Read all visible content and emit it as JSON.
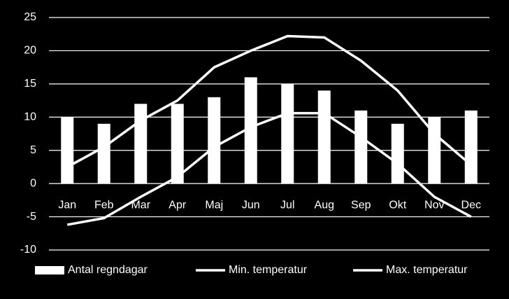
{
  "chart_data": {
    "type": "bar_line",
    "categories": [
      "Jan",
      "Feb",
      "Mar",
      "Apr",
      "Maj",
      "Jun",
      "Jul",
      "Aug",
      "Sep",
      "Okt",
      "Nov",
      "Dec"
    ],
    "series": [
      {
        "name": "Antal regndagar",
        "type": "bar",
        "color": "#ffffff",
        "values": [
          10,
          9,
          12,
          12,
          13,
          16,
          15,
          14,
          11,
          9,
          10,
          11
        ]
      },
      {
        "name": "Min. temperatur",
        "type": "line",
        "color": "#ffffff",
        "values": [
          -6.2,
          -5.2,
          -2,
          1,
          5.5,
          8.5,
          10.6,
          10.6,
          7,
          3,
          -2,
          -5
        ]
      },
      {
        "name": "Max. temperatur",
        "type": "line",
        "color": "#ffffff",
        "values": [
          2.5,
          5.5,
          9.5,
          12.5,
          17.5,
          20,
          22.2,
          22,
          18.5,
          14,
          7.5,
          2.8
        ]
      }
    ],
    "ylim": [
      -10,
      25
    ],
    "yticks": [
      -10,
      -5,
      0,
      5,
      10,
      15,
      20,
      25
    ],
    "grid": true,
    "legend": "bottom"
  }
}
